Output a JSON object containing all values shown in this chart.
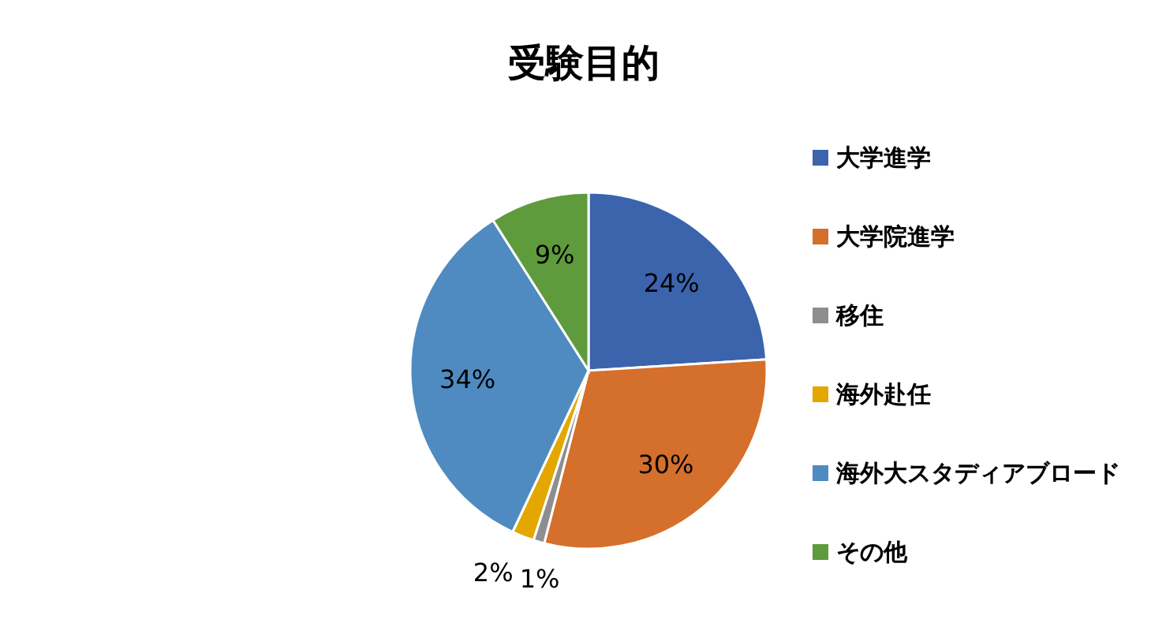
{
  "chart_data": {
    "type": "pie",
    "title": "受験目的",
    "categories": [
      "大学進学",
      "大学院進学",
      "移住",
      "海外赴任",
      "海外大スタディアブロード",
      "その他"
    ],
    "values": [
      24,
      30,
      1,
      2,
      34,
      9
    ],
    "colors": [
      "#3b64ad",
      "#d4702c",
      "#8e8e8e",
      "#e3a700",
      "#4f8bc1",
      "#5f9a3c"
    ],
    "value_labels": [
      "24%",
      "30%",
      "1%",
      "2%",
      "34%",
      "9%"
    ],
    "legend": "right"
  }
}
